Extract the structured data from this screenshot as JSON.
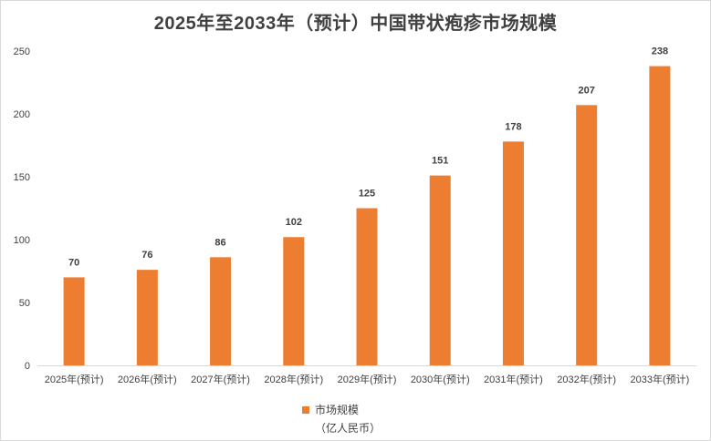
{
  "chart_data": {
    "type": "bar",
    "title": "2025年至2033年（预计）中国带状疱疹市场规模",
    "categories": [
      "2025年(预计)",
      "2026年(预计)",
      "2027年(预计)",
      "2028年(预计)",
      "2029年(预计)",
      "2030年(预计)",
      "2031年(预计)",
      "2032年(预计)",
      "2033年(预计)"
    ],
    "series": [
      {
        "name": "市场规模",
        "unit": "（亿人民币）",
        "values": [
          70,
          76,
          86,
          102,
          125,
          151,
          178,
          207,
          238
        ]
      }
    ],
    "ylim": [
      0,
      250
    ],
    "yticks": [
      0,
      50,
      100,
      150,
      200,
      250
    ],
    "color": "#ED7D31",
    "legend_position": "bottom"
  }
}
